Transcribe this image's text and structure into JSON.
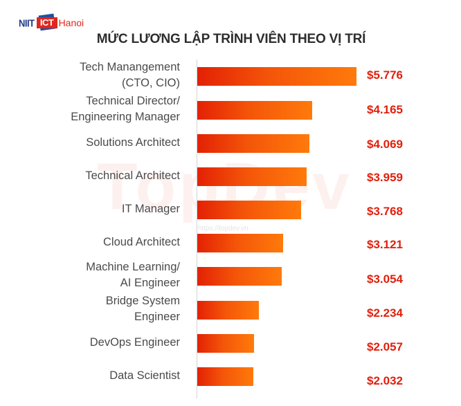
{
  "logo": {
    "part1": "NIIT",
    "part2": "ICT",
    "part3": "Hanoi"
  },
  "watermark": {
    "brand": "TopDev",
    "url": "https://topdev.vn"
  },
  "chart_data": {
    "type": "bar",
    "orientation": "horizontal",
    "title": "MỨC LƯƠNG LẬP TRÌNH VIÊN THEO VỊ TRÍ",
    "xlabel": "",
    "ylabel": "",
    "grid": false,
    "categories": [
      "Tech Manangement (CTO, CIO)",
      "Technical Director/ Engineering Manager",
      "Solutions Architect",
      "Technical Architect",
      "IT Manager",
      "Cloud Architect",
      "Machine Learning/ AI Engineer",
      "Bridge System Engineer",
      "DevOps Engineer",
      "Data Scientist"
    ],
    "values": [
      5776,
      4165,
      4069,
      3959,
      3768,
      3121,
      3054,
      2234,
      2057,
      2032
    ],
    "value_labels": [
      "$5.776",
      "$4.165",
      "$4.069",
      "$3.959",
      "$3.768",
      "$3.121",
      "$3.054",
      "$2.234",
      "$2.057",
      "$2.032"
    ],
    "unit": "USD",
    "bar_gradient": [
      "#e32104",
      "#ff7a0b"
    ],
    "value_color": "#e0200d"
  },
  "rows": [
    {
      "label_lines": [
        "Tech Manangement",
        "(CTO, CIO)"
      ],
      "value": "$5.776"
    },
    {
      "label_lines": [
        "Technical Director/",
        "Engineering Manager"
      ],
      "value": "$4.165"
    },
    {
      "label_lines": [
        "Solutions Architect"
      ],
      "value": "$4.069"
    },
    {
      "label_lines": [
        "Technical Architect"
      ],
      "value": "$3.959"
    },
    {
      "label_lines": [
        "IT Manager"
      ],
      "value": "$3.768"
    },
    {
      "label_lines": [
        "Cloud Architect"
      ],
      "value": "$3.121"
    },
    {
      "label_lines": [
        "Machine Learning/",
        "AI Engineer"
      ],
      "value": "$3.054"
    },
    {
      "label_lines": [
        "Bridge System",
        "Engineer"
      ],
      "value": "$2.234"
    },
    {
      "label_lines": [
        "DevOps Engineer"
      ],
      "value": "$2.057"
    },
    {
      "label_lines": [
        "Data Scientist"
      ],
      "value": "$2.032"
    }
  ]
}
